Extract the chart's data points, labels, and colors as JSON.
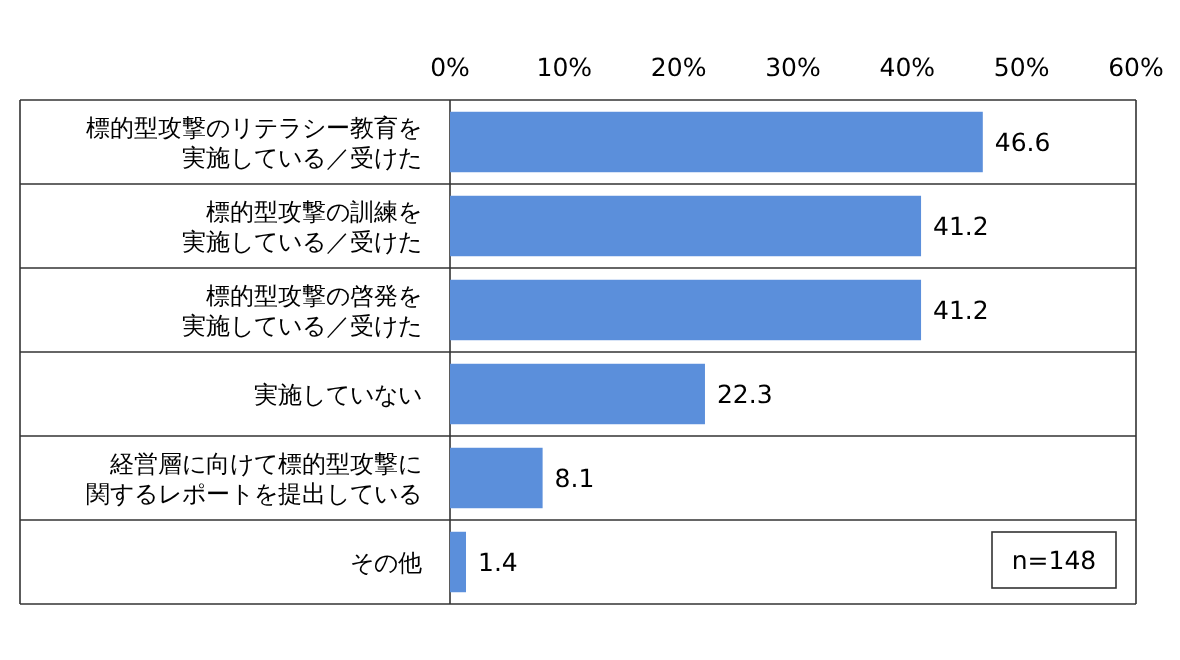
{
  "chart_data": {
    "type": "bar",
    "orientation": "horizontal",
    "categories": [
      "標的型攻撃のリテラシー教育を実施している／受けた",
      "標的型攻撃の訓練を実施している／受けた",
      "標的型攻撃の啓発を実施している／受けた",
      "実施していない",
      "経営層に向けて標的型攻撃に関するレポートを提出している",
      "その他"
    ],
    "values": [
      46.6,
      41.2,
      41.2,
      22.3,
      8.1,
      1.4
    ],
    "color": "#5b8fdb",
    "xlim": [
      0,
      60
    ],
    "xticks": [
      {
        "value": 0,
        "label": "0%"
      },
      {
        "value": 10,
        "label": "10%"
      },
      {
        "value": 20,
        "label": "20%"
      },
      {
        "value": 30,
        "label": "30%"
      },
      {
        "value": 40,
        "label": "40%"
      },
      {
        "value": 50,
        "label": "50%"
      },
      {
        "value": 60,
        "label": "60%"
      }
    ],
    "data_labels": true,
    "grid": false,
    "annotations": [
      "n=148"
    ]
  }
}
